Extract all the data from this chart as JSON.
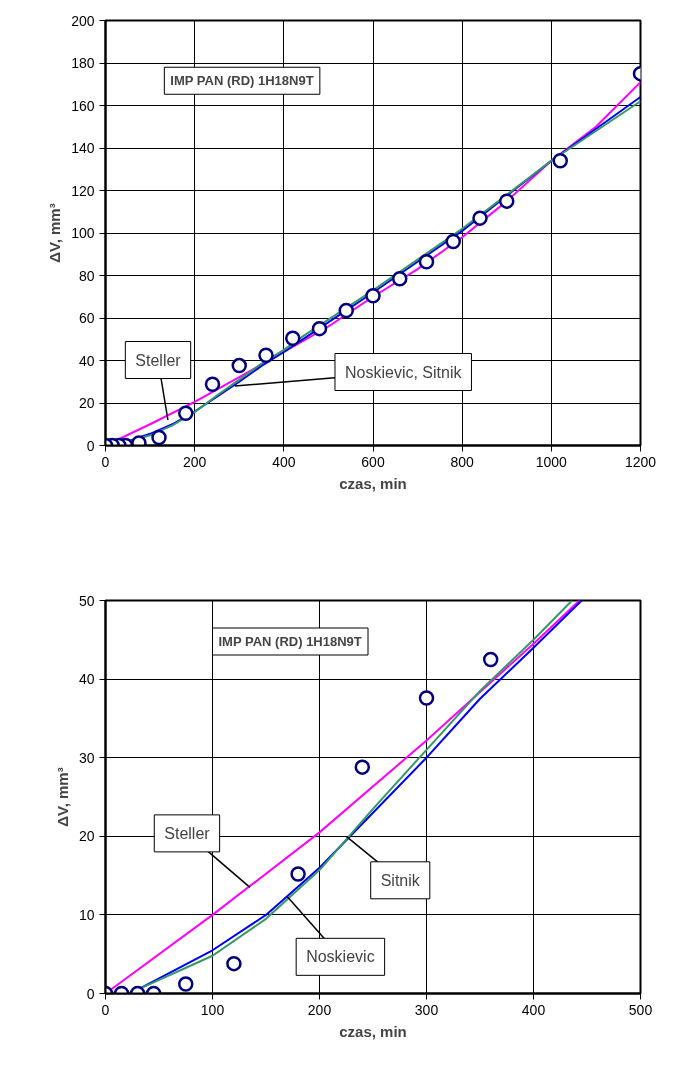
{
  "chart_data": [
    {
      "type": "line",
      "xlabel": "czas, min",
      "ylabel": "ΔV, mm³",
      "xlim": [
        0,
        1200
      ],
      "ylim": [
        0,
        200
      ],
      "xticks": [
        0,
        200,
        400,
        600,
        800,
        1000,
        1200
      ],
      "yticks": [
        0,
        20,
        40,
        60,
        80,
        100,
        120,
        140,
        160,
        180,
        200
      ],
      "grid": true,
      "annotations": [
        "IMP PAN (RD) 1H18N9T",
        {
          "text": "Steller",
          "x": 140,
          "y": 12
        },
        {
          "text": "Noskievic, Sitnik",
          "x": 290,
          "y": 28
        }
      ],
      "series": [
        {
          "type": "scatter",
          "marker": "circle",
          "color": "#000080",
          "x": [
            0,
            15,
            30,
            45,
            75,
            120,
            180,
            240,
            300,
            360,
            420,
            480,
            540,
            600,
            660,
            720,
            780,
            840,
            900,
            1020,
            1200
          ],
          "values": [
            0,
            0,
            0,
            0,
            1.2,
            3.8,
            15.2,
            28.8,
            37.6,
            42.5,
            50.5,
            55,
            63.5,
            70.5,
            78.5,
            86.5,
            96,
            107,
            115,
            134,
            175
          ]
        },
        {
          "color": "#ff00ff",
          "x": [
            0,
            100,
            200,
            300,
            400,
            500,
            600,
            700,
            800,
            900,
            1000,
            1100,
            1200
          ],
          "values": [
            0,
            10,
            20.5,
            32.2,
            44,
            56,
            70,
            83,
            98,
            115,
            134,
            150,
            171
          ]
        },
        {
          "color": "#0000ff",
          "x": [
            30,
            100,
            150,
            200,
            250,
            300,
            350,
            400,
            450,
            600,
            800,
            1000,
            1200
          ],
          "values": [
            0.5,
            5.5,
            10,
            16,
            23,
            30,
            37.5,
            44,
            51,
            72,
            101,
            134,
            164
          ]
        },
        {
          "color": "#339966",
          "x": [
            30,
            100,
            150,
            200,
            250,
            300,
            350,
            400,
            440,
            600,
            800,
            1000,
            1200
          ],
          "values": [
            0.5,
            4.8,
            9.5,
            15.7,
            23.5,
            31,
            38.5,
            45,
            51,
            73,
            102,
            134,
            162
          ]
        }
      ]
    },
    {
      "type": "line",
      "xlabel": "czas, min",
      "ylabel": "ΔV, mm³",
      "xlim": [
        0,
        500
      ],
      "ylim": [
        0,
        50
      ],
      "xticks": [
        0,
        100,
        200,
        300,
        400,
        500
      ],
      "yticks": [
        0,
        10,
        20,
        30,
        40,
        50
      ],
      "grid": true,
      "annotations": [
        "IMP PAN (RD) 1H18N9T",
        {
          "text": "Steller",
          "x": 135,
          "y": 13.5
        },
        {
          "text": "Sitnik",
          "x": 225,
          "y": 20
        },
        {
          "text": "Noskievic",
          "x": 170,
          "y": 12.3
        }
      ],
      "series": [
        {
          "type": "scatter",
          "marker": "circle",
          "color": "#000080",
          "x": [
            0,
            15,
            30,
            45,
            75,
            120,
            180,
            240,
            300,
            360
          ],
          "values": [
            0,
            0,
            0,
            0,
            1.2,
            3.8,
            15.2,
            28.8,
            37.6,
            42.5
          ]
        },
        {
          "color": "#ff00ff",
          "x": [
            0,
            100,
            200,
            300,
            400,
            443
          ],
          "values": [
            0,
            10,
            20.5,
            32.2,
            44.5,
            50
          ]
        },
        {
          "color": "#0000ff",
          "x": [
            30,
            100,
            150,
            200,
            250,
            300,
            350,
            400,
            445
          ],
          "values": [
            0.5,
            5.5,
            10,
            16,
            23,
            30,
            37.5,
            44,
            50
          ]
        },
        {
          "color": "#339966",
          "x": [
            30,
            100,
            150,
            200,
            250,
            300,
            350,
            400,
            436
          ],
          "values": [
            0.5,
            4.8,
            9.5,
            15.7,
            23.5,
            31,
            38.5,
            45,
            50
          ]
        }
      ]
    }
  ]
}
